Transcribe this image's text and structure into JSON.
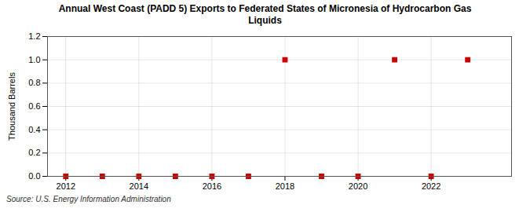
{
  "chart_data": {
    "type": "scatter",
    "title": "Annual West Coast (PADD 5) Exports to Federated States of Micronesia of Hydrocarbon Gas\nLiquids",
    "ylabel": "Thousand Barrels",
    "source": "Source: U.S. Energy Information Administration",
    "x": [
      2012,
      2013,
      2014,
      2015,
      2016,
      2017,
      2018,
      2019,
      2020,
      2021,
      2022,
      2023
    ],
    "values": [
      0,
      0,
      0,
      0,
      0,
      0,
      1.0,
      0,
      0,
      1.0,
      0,
      1.0
    ],
    "color": "#cc0000",
    "marker": "square",
    "xlim": [
      2011.5,
      2024.2
    ],
    "xticks": [
      2012,
      2014,
      2016,
      2018,
      2020,
      2022
    ],
    "ylim": [
      0,
      1.2
    ],
    "yticks": [
      {
        "value": 0,
        "label": "0.0"
      },
      0.2,
      0.4,
      0.6,
      0.8,
      {
        "value": 1,
        "label": "1.0"
      },
      1.2
    ],
    "grid": true
  }
}
